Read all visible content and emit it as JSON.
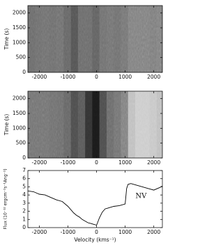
{
  "chart_data": [
    {
      "type": "heatmap",
      "ylabel": "Time (s)",
      "xlim": [
        -2400,
        2300
      ],
      "xticks": [
        -2000,
        -1000,
        0,
        1000,
        2000
      ],
      "ylim": [
        0,
        2250
      ],
      "yticks": [
        0,
        500,
        1000,
        1500,
        2000
      ],
      "x_bins": [
        -2400,
        -2150,
        -1900,
        -1650,
        -1400,
        -1150,
        -900,
        -650,
        -400,
        -150,
        100,
        350,
        600,
        850,
        1100,
        1350,
        1600,
        1850,
        2100,
        2300
      ],
      "values": [
        0.42,
        0.43,
        0.44,
        0.43,
        0.44,
        0.4,
        0.33,
        0.42,
        0.42,
        0.38,
        0.44,
        0.45,
        0.44,
        0.46,
        0.5,
        0.5,
        0.5,
        0.49,
        0.5
      ]
    },
    {
      "type": "heatmap",
      "ylabel": "Time (s)",
      "xlim": [
        -2400,
        2300
      ],
      "xticks": [
        -2000,
        -1000,
        0,
        1000,
        2000
      ],
      "ylim": [
        0,
        2250
      ],
      "yticks": [
        0,
        500,
        1000,
        1500,
        2000
      ],
      "x_bins": [
        -2400,
        -2150,
        -1900,
        -1650,
        -1400,
        -1150,
        -900,
        -650,
        -400,
        -150,
        100,
        350,
        600,
        850,
        1100,
        1350,
        1600,
        1850,
        2100,
        2300
      ],
      "values": [
        0.45,
        0.45,
        0.45,
        0.44,
        0.43,
        0.4,
        0.3,
        0.35,
        0.2,
        0.1,
        0.3,
        0.42,
        0.45,
        0.5,
        0.75,
        0.8,
        0.8,
        0.78,
        0.75
      ]
    },
    {
      "type": "line",
      "ylabel": "Flux (10⁻¹² ergcm⁻²s⁻¹Ang⁻¹)",
      "xlabel": "Velocity (kms⁻¹)",
      "annotation": "NV",
      "xlim": [
        -2400,
        2300
      ],
      "xticks": [
        -2000,
        -1000,
        0,
        1000,
        2000
      ],
      "ylim": [
        0,
        7
      ],
      "yticks": [
        0,
        1,
        2,
        3,
        4,
        5,
        6,
        7
      ],
      "color": "#000000",
      "x": [
        -2400,
        -2200,
        -2000,
        -1800,
        -1600,
        -1400,
        -1200,
        -1000,
        -900,
        -800,
        -700,
        -600,
        -500,
        -400,
        -300,
        -200,
        -100,
        0,
        100,
        200,
        300,
        400,
        500,
        600,
        800,
        1000,
        1050,
        1100,
        1200,
        1400,
        1600,
        1800,
        2000,
        2200,
        2300
      ],
      "values": [
        4.5,
        4.4,
        4.1,
        4.0,
        3.7,
        3.4,
        3.2,
        2.6,
        2.2,
        1.8,
        1.5,
        1.3,
        1.0,
        0.8,
        0.6,
        0.5,
        0.4,
        0.3,
        1.2,
        1.9,
        2.3,
        2.4,
        2.5,
        2.6,
        2.7,
        2.9,
        4.8,
        5.3,
        5.4,
        5.2,
        5.0,
        4.8,
        4.6,
        4.9,
        5.1
      ]
    }
  ]
}
